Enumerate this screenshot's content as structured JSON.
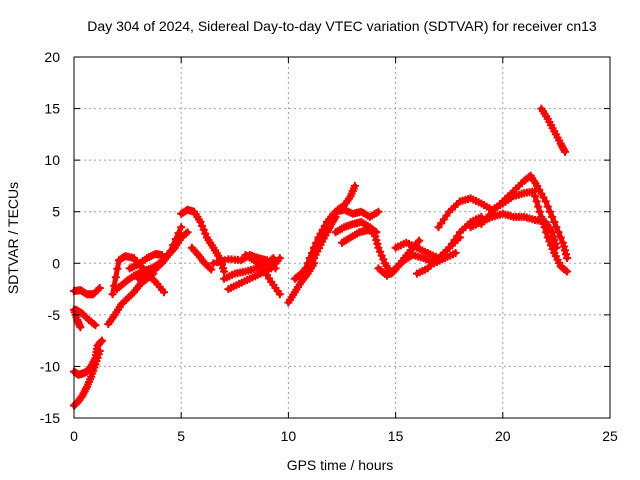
{
  "chart_data": {
    "type": "scatter",
    "title": "Day 304 of 2024, Sidereal Day-to-day VTEC variation (SDTVAR) for receiver cn13",
    "xlabel": "GPS time / hours",
    "ylabel": "SDTVAR / TECUs",
    "xlim": [
      0,
      25
    ],
    "ylim": [
      -15,
      20
    ],
    "xticks": [
      0,
      5,
      10,
      15,
      20,
      25
    ],
    "yticks": [
      -15,
      -10,
      -5,
      0,
      5,
      10,
      15,
      20
    ],
    "grid": true,
    "legend": "none",
    "marker": "plus",
    "color": "#ff0000",
    "series": [
      {
        "name": "trace-1",
        "x": [
          0.0,
          0.3,
          0.6,
          0.9,
          1.2
        ],
        "y": [
          -2.7,
          -2.6,
          -3.0,
          -3.0,
          -2.4
        ]
      },
      {
        "name": "trace-2",
        "x": [
          0.0,
          0.15,
          0.3
        ],
        "y": [
          -4.5,
          -5.5,
          -6.2
        ]
      },
      {
        "name": "trace-3",
        "x": [
          0.1,
          0.4,
          0.7,
          1.0
        ],
        "y": [
          -4.5,
          -4.9,
          -5.5,
          -6.0
        ]
      },
      {
        "name": "trace-4",
        "x": [
          0.0,
          0.2,
          0.4,
          0.6,
          0.8,
          1.0,
          1.1,
          1.3
        ],
        "y": [
          -10.5,
          -10.8,
          -10.7,
          -10.5,
          -10.0,
          -9.2,
          -8.0,
          -7.5
        ]
      },
      {
        "name": "trace-5",
        "x": [
          0.0,
          0.2,
          0.4,
          0.6,
          0.8,
          1.0,
          1.2
        ],
        "y": [
          -13.8,
          -13.4,
          -12.8,
          -12.0,
          -11.0,
          -9.8,
          -8.5
        ]
      },
      {
        "name": "trace-6",
        "x": [
          1.6,
          1.9,
          2.2,
          2.5,
          2.8,
          3.1,
          3.4,
          3.7
        ],
        "y": [
          -5.9,
          -5.0,
          -4.0,
          -3.4,
          -2.8,
          -2.0,
          -1.5,
          -1.0
        ]
      },
      {
        "name": "trace-7",
        "x": [
          2.0,
          2.4,
          2.8,
          3.2,
          3.6,
          4.0,
          4.5,
          5.0
        ],
        "y": [
          -2.5,
          -1.8,
          -1.2,
          -0.8,
          -0.5,
          0.0,
          1.2,
          3.5
        ]
      },
      {
        "name": "trace-8",
        "x": [
          1.8,
          2.1,
          2.4,
          2.8,
          3.2,
          3.5,
          3.8
        ],
        "y": [
          -3.0,
          0.3,
          0.7,
          0.5,
          -0.5,
          -1.0,
          -0.6
        ]
      },
      {
        "name": "trace-9",
        "x": [
          2.6,
          3.0,
          3.4,
          3.8,
          4.1
        ],
        "y": [
          -0.5,
          -0.1,
          0.5,
          0.9,
          0.8
        ]
      },
      {
        "name": "trace-10",
        "x": [
          3.5,
          3.8,
          4.1,
          4.4,
          4.7,
          5.0,
          5.3
        ],
        "y": [
          -1.0,
          -0.5,
          0.0,
          0.8,
          1.5,
          2.5,
          3.0
        ]
      },
      {
        "name": "trace-11",
        "x": [
          3.0,
          3.5,
          3.8,
          4.2
        ],
        "y": [
          -1.5,
          -1.2,
          -1.8,
          -2.8
        ]
      },
      {
        "name": "trace-12",
        "x": [
          5.0,
          5.3,
          5.6,
          5.9,
          6.2,
          6.5,
          6.8,
          7.0
        ],
        "y": [
          4.8,
          5.2,
          5.0,
          4.0,
          2.5,
          1.5,
          0.5,
          -0.8
        ]
      },
      {
        "name": "trace-13",
        "x": [
          5.5,
          5.8,
          6.1,
          6.4
        ],
        "y": [
          1.5,
          0.8,
          0.0,
          -0.6
        ]
      },
      {
        "name": "trace-14",
        "x": [
          7.0,
          7.5,
          8.0,
          8.5,
          9.0,
          9.3
        ],
        "y": [
          -1.5,
          -1.0,
          -0.8,
          -0.5,
          0.0,
          0.5
        ]
      },
      {
        "name": "trace-15",
        "x": [
          7.2,
          7.7,
          8.2,
          8.7,
          9.2,
          9.6
        ],
        "y": [
          -2.5,
          -2.0,
          -1.5,
          -1.0,
          -0.5,
          0.5
        ]
      },
      {
        "name": "trace-16",
        "x": [
          6.5,
          7.2,
          7.8,
          8.2,
          8.6,
          9.0,
          9.4
        ],
        "y": [
          0.0,
          0.4,
          0.3,
          0.8,
          0.5,
          0.3,
          -0.5
        ]
      },
      {
        "name": "trace-17",
        "x": [
          8.0,
          8.4,
          8.8,
          9.2,
          9.6
        ],
        "y": [
          0.8,
          0.3,
          -0.5,
          -1.8,
          -3.0
        ]
      },
      {
        "name": "trace-18",
        "x": [
          10.0,
          10.3,
          10.6,
          10.9,
          11.2
        ],
        "y": [
          -3.8,
          -2.8,
          -1.8,
          -1.0,
          0.0
        ]
      },
      {
        "name": "trace-19",
        "x": [
          10.3,
          10.6,
          10.9,
          11.2,
          11.5,
          11.8,
          12.0,
          12.2
        ],
        "y": [
          -1.5,
          -1.0,
          -0.3,
          0.5,
          1.8,
          3.0,
          3.8,
          4.5
        ]
      },
      {
        "name": "trace-20",
        "x": [
          10.8,
          11.2,
          11.6,
          12.0,
          12.3,
          12.6,
          12.9,
          13.1
        ],
        "y": [
          -0.5,
          1.5,
          3.0,
          4.5,
          5.2,
          5.6,
          6.5,
          7.5
        ]
      },
      {
        "name": "trace-21",
        "x": [
          11.0,
          11.4,
          11.8,
          12.2,
          12.6,
          13.0,
          13.4,
          13.8,
          14.2
        ],
        "y": [
          0.5,
          2.5,
          4.0,
          5.0,
          5.2,
          4.8,
          5.0,
          4.5,
          5.0
        ]
      },
      {
        "name": "trace-22",
        "x": [
          12.2,
          12.6,
          13.0,
          13.4,
          13.8,
          14.1
        ],
        "y": [
          3.0,
          3.5,
          3.8,
          4.0,
          3.5,
          3.0
        ]
      },
      {
        "name": "trace-23",
        "x": [
          12.5,
          12.9,
          13.3,
          13.7,
          14.1
        ],
        "y": [
          2.0,
          2.5,
          3.0,
          3.2,
          3.0
        ]
      },
      {
        "name": "trace-24",
        "x": [
          14.0,
          14.2,
          14.5,
          14.8,
          15.0,
          15.4,
          15.8,
          16.1
        ],
        "y": [
          3.0,
          1.5,
          0.0,
          -1.0,
          -0.6,
          0.5,
          1.5,
          2.2
        ]
      },
      {
        "name": "trace-25",
        "x": [
          14.2,
          14.6,
          15.0,
          15.4,
          15.8,
          16.3,
          16.8,
          17.3,
          17.8
        ],
        "y": [
          -0.5,
          -1.2,
          -0.5,
          0.3,
          0.8,
          0.5,
          0.0,
          0.5,
          1.0
        ]
      },
      {
        "name": "trace-26",
        "x": [
          15.0,
          15.5,
          16.0,
          16.5,
          17.0,
          17.5,
          18.0
        ],
        "y": [
          1.5,
          2.0,
          1.5,
          1.0,
          0.5,
          1.5,
          2.5
        ]
      },
      {
        "name": "trace-27",
        "x": [
          16.0,
          16.5,
          17.0,
          17.5,
          18.0,
          18.5,
          19.0
        ],
        "y": [
          -1.0,
          -0.5,
          0.5,
          1.5,
          3.0,
          4.0,
          4.5
        ]
      },
      {
        "name": "trace-28",
        "x": [
          17.0,
          17.5,
          18.0,
          18.5,
          19.0,
          19.5,
          20.0,
          20.5,
          21.0,
          21.5
        ],
        "y": [
          3.5,
          5.0,
          6.0,
          6.3,
          5.8,
          5.2,
          5.8,
          6.5,
          6.8,
          7.0
        ]
      },
      {
        "name": "trace-29",
        "x": [
          18.5,
          19.0,
          19.5,
          20.0,
          20.5,
          21.0,
          21.5,
          22.0,
          22.3,
          22.5
        ],
        "y": [
          3.5,
          4.0,
          4.5,
          4.8,
          4.5,
          4.5,
          4.2,
          4.0,
          3.0,
          1.5
        ]
      },
      {
        "name": "trace-30",
        "x": [
          19.0,
          19.5,
          20.0,
          20.5,
          21.0,
          21.3,
          21.6,
          22.0,
          22.4,
          22.8,
          23.0
        ],
        "y": [
          3.8,
          5.0,
          6.0,
          7.0,
          8.0,
          8.5,
          7.5,
          6.0,
          4.0,
          2.0,
          0.5
        ]
      },
      {
        "name": "trace-31",
        "x": [
          21.5,
          21.8,
          22.1,
          22.4,
          22.7,
          23.0
        ],
        "y": [
          6.5,
          4.5,
          2.5,
          1.0,
          -0.3,
          -0.8
        ]
      },
      {
        "name": "trace-32",
        "x": [
          21.8,
          22.1,
          22.4,
          22.7,
          22.9
        ],
        "y": [
          15.0,
          14.0,
          12.8,
          11.6,
          10.8
        ]
      }
    ]
  }
}
